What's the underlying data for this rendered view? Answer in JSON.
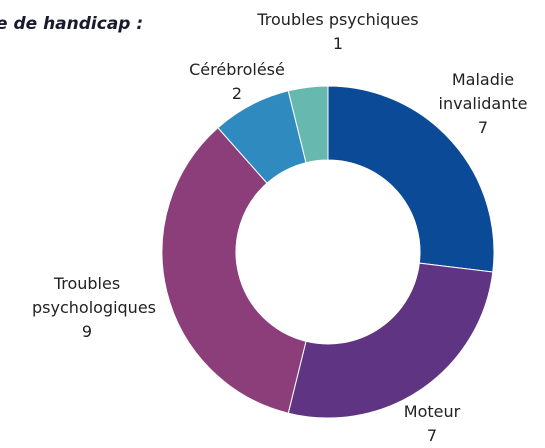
{
  "chart_data": {
    "type": "donut",
    "title": "e de handicap :",
    "categories": [
      "Maladie invalidante",
      "Moteur",
      "Troubles psychologiques",
      "Cérébrolésé",
      "Troubles psychiques"
    ],
    "values": [
      7,
      7,
      9,
      2,
      1
    ],
    "colors": [
      "#0b4a97",
      "#5e3483",
      "#8c3e7b",
      "#2f8bbf",
      "#67b8ae"
    ]
  }
}
